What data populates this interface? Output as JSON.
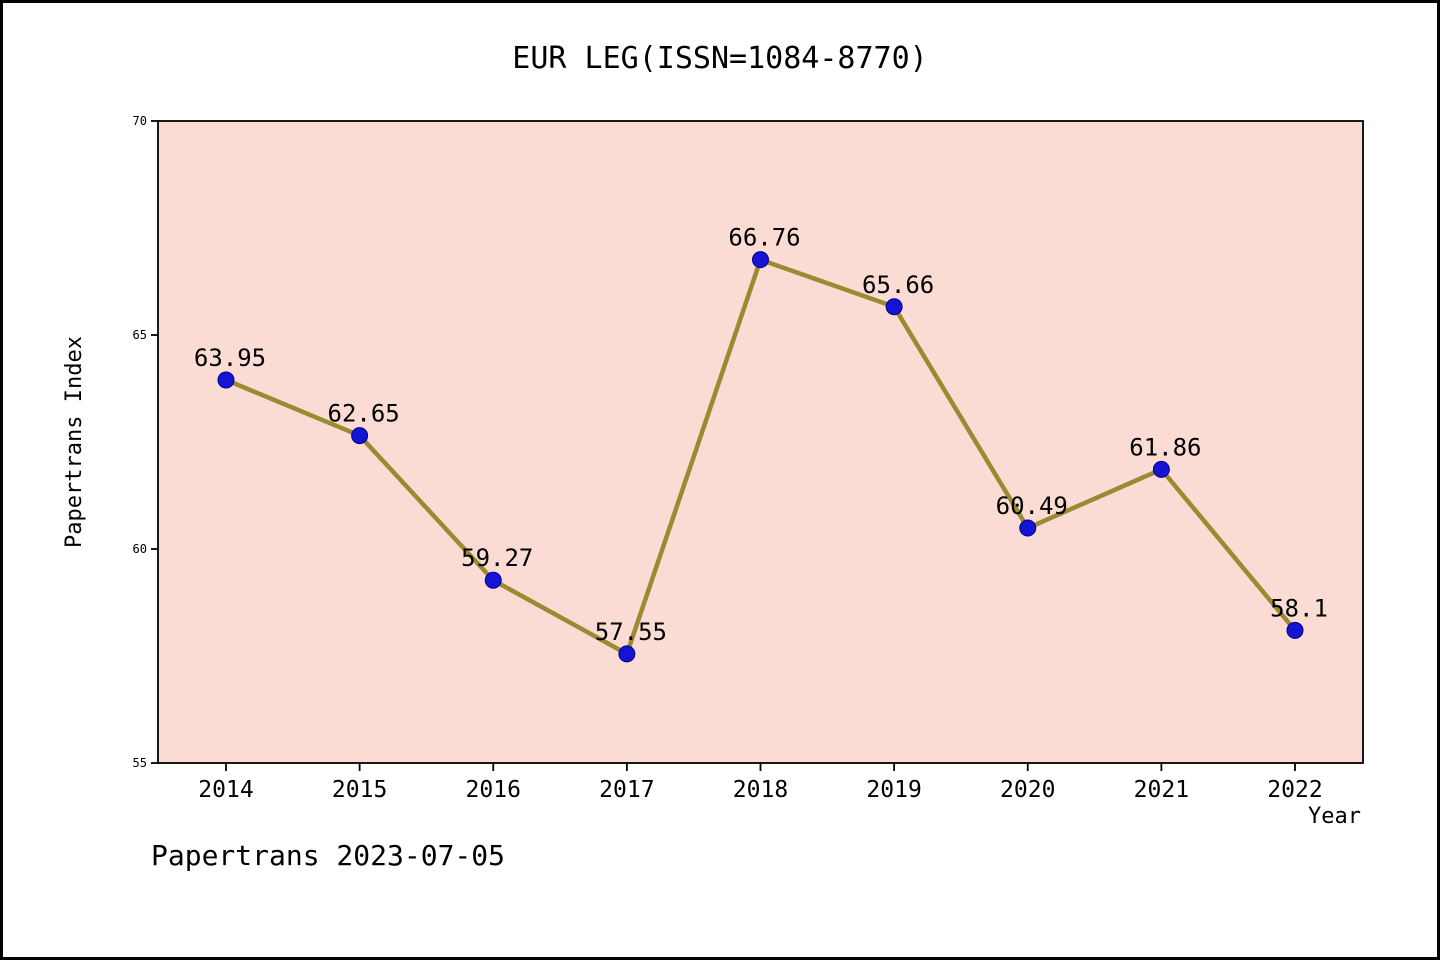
{
  "chart_data": {
    "type": "line",
    "title": "EUR LEG(ISSN=1084-8770)",
    "xlabel": "Year",
    "ylabel": "Papertrans Index",
    "x": [
      2014,
      2015,
      2016,
      2017,
      2018,
      2019,
      2020,
      2021,
      2022
    ],
    "values": [
      63.95,
      62.65,
      59.27,
      57.55,
      66.76,
      65.66,
      60.49,
      61.86,
      58.1
    ],
    "point_labels": [
      "63.95",
      "62.65",
      "59.27",
      "57.55",
      "66.76",
      "65.66",
      "60.49",
      "61.86",
      "58.1"
    ],
    "ylim": [
      55,
      70
    ],
    "yticks": [
      55,
      60,
      65,
      70
    ],
    "legend": null,
    "grid": false,
    "colors": {
      "plot_bg": "#fadcd5",
      "line": "#9a8b30",
      "marker": "#1414d2",
      "marker_edge": "#00008b",
      "axis": "#000000"
    },
    "footer": "Papertrans 2023-07-05"
  }
}
